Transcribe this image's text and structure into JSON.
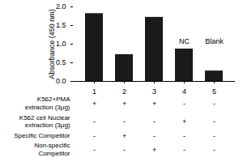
{
  "chart_data": {
    "type": "bar",
    "categories": [
      "1",
      "2",
      "3",
      "4",
      "5"
    ],
    "values": [
      1.82,
      0.72,
      1.72,
      0.87,
      0.28
    ],
    "color": "#1a1a1a",
    "ylabel": "Absorbance (450 nm)",
    "ylim": [
      0,
      2.0
    ],
    "yticks": [
      0.0,
      0.5,
      1.0,
      1.5,
      2.0
    ],
    "annotations": [
      {
        "text": "NC",
        "x": "4",
        "y": 1.02
      },
      {
        "text": "Blank",
        "x": "5",
        "y": 1.02
      }
    ],
    "table": [
      {
        "label": "K562+PMA\nextraction (3μg)",
        "signs": [
          "+",
          "+",
          "+",
          "-",
          "-"
        ]
      },
      {
        "label": "K562 cell Nuclear\nextraction (3μg)",
        "signs": [
          "-",
          "-",
          "-",
          "+",
          "-"
        ]
      },
      {
        "label": "Specific Competitor",
        "signs": [
          "-",
          "+",
          "-",
          "-",
          "-"
        ]
      },
      {
        "label": "Non-specific\nCompetitor",
        "signs": [
          "-",
          "-",
          "+",
          "-",
          "-"
        ]
      }
    ]
  }
}
